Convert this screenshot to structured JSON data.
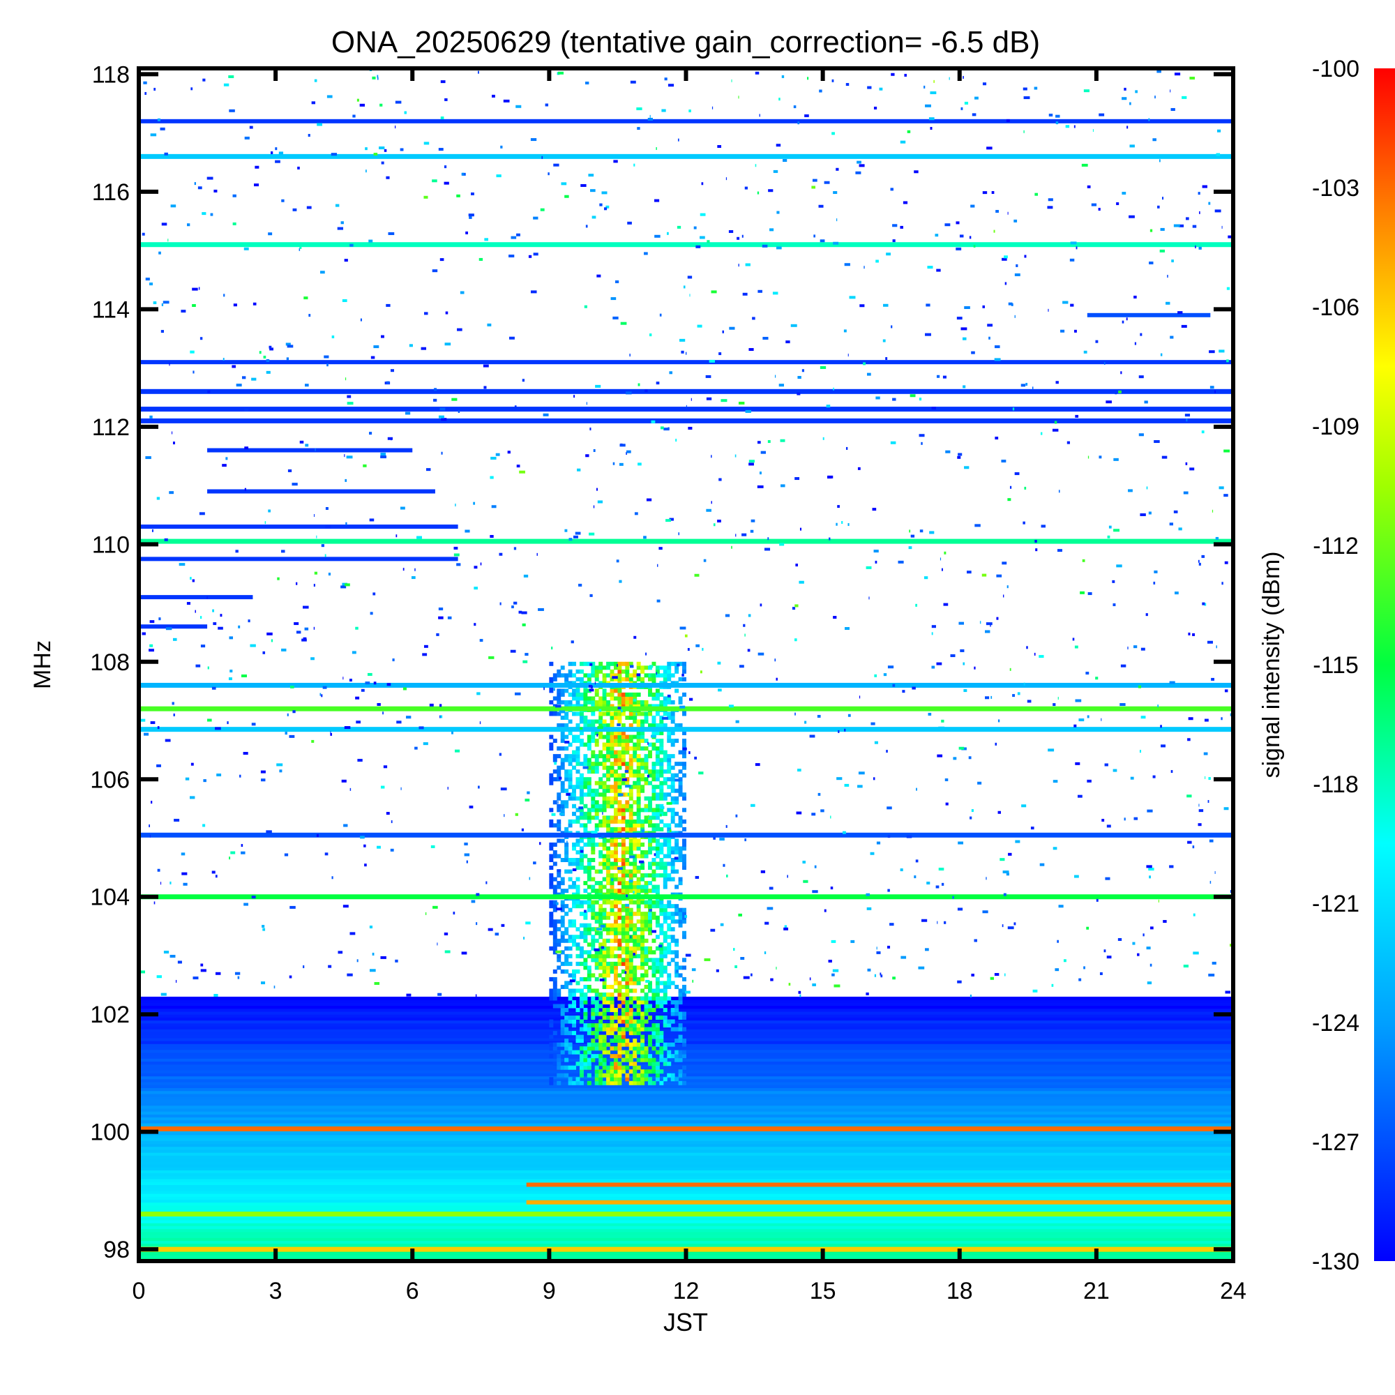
{
  "chart_data": {
    "type": "heatmap",
    "title": "ONA_20250629 (tentative gain_correction= -6.5 dB)",
    "xlabel": "JST",
    "ylabel": "MHz",
    "xlim": [
      0,
      24
    ],
    "ylim": [
      97.8,
      118.1
    ],
    "x_ticks": [
      0,
      3,
      6,
      9,
      12,
      15,
      18,
      21,
      24
    ],
    "x_tick_labels": [
      "0",
      "3",
      "6",
      "9",
      "12",
      "15",
      "18",
      "21",
      "24"
    ],
    "y_ticks": [
      98,
      100,
      102,
      104,
      106,
      108,
      110,
      112,
      114,
      116,
      118
    ],
    "y_tick_labels": [
      "98",
      "100",
      "102",
      "104",
      "106",
      "108",
      "110",
      "112",
      "114",
      "116",
      "118"
    ],
    "colorbar": {
      "label": "signal intensity (dBm)",
      "range": [
        -130,
        -100
      ],
      "colormap": "rainbow (blue=low, red=high)",
      "ticks": [
        -100,
        -103,
        -106,
        -109,
        -112,
        -115,
        -118,
        -121,
        -124,
        -127,
        -130
      ],
      "tick_labels": [
        "-100",
        "-103",
        "-106",
        "-109",
        "-112",
        "-115",
        "-118",
        "-121",
        "-124",
        "-127",
        "-130"
      ]
    },
    "background_color": "#ffffff",
    "grid": false,
    "persistent_lines": [
      {
        "freq_mhz": 116.6,
        "dbm": -122
      },
      {
        "freq_mhz": 115.1,
        "dbm": -118
      },
      {
        "freq_mhz": 112.6,
        "dbm": -128
      },
      {
        "freq_mhz": 112.3,
        "dbm": -128
      },
      {
        "freq_mhz": 112.1,
        "dbm": -128
      },
      {
        "freq_mhz": 110.05,
        "dbm": -117
      },
      {
        "freq_mhz": 107.6,
        "dbm": -123
      },
      {
        "freq_mhz": 107.2,
        "dbm": -113
      },
      {
        "freq_mhz": 106.85,
        "dbm": -122
      },
      {
        "freq_mhz": 105.05,
        "dbm": -127
      },
      {
        "freq_mhz": 104.0,
        "dbm": -115
      },
      {
        "freq_mhz": 100.05,
        "dbm": -103
      },
      {
        "freq_mhz": 98.6,
        "dbm": -111
      },
      {
        "freq_mhz": 98.0,
        "dbm": -106
      }
    ],
    "partial_lines": [
      {
        "freq_mhz": 117.2,
        "x_range": [
          0,
          24
        ],
        "dbm": -128
      },
      {
        "freq_mhz": 113.1,
        "x_range": [
          0,
          24
        ],
        "dbm": -128
      },
      {
        "freq_mhz": 111.6,
        "x_range": [
          1.5,
          6
        ],
        "dbm": -128
      },
      {
        "freq_mhz": 110.9,
        "x_range": [
          1.5,
          6.5
        ],
        "dbm": -128
      },
      {
        "freq_mhz": 110.3,
        "x_range": [
          0,
          7
        ],
        "dbm": -128
      },
      {
        "freq_mhz": 109.75,
        "x_range": [
          0,
          7
        ],
        "dbm": -128
      },
      {
        "freq_mhz": 109.1,
        "x_range": [
          0,
          2.5
        ],
        "dbm": -128
      },
      {
        "freq_mhz": 108.6,
        "x_range": [
          0,
          1.5
        ],
        "dbm": -128
      },
      {
        "freq_mhz": 113.9,
        "x_range": [
          20.8,
          23.5
        ],
        "dbm": -127
      },
      {
        "freq_mhz": 99.1,
        "x_range": [
          8.5,
          24
        ],
        "dbm": -103
      },
      {
        "freq_mhz": 98.8,
        "x_range": [
          8.5,
          24
        ],
        "dbm": -105
      }
    ],
    "broadband_burst": {
      "x_range": [
        9,
        12
      ],
      "freq_range_mhz": [
        100.8,
        108.0
      ],
      "dbm_range": [
        -128,
        -101
      ]
    },
    "noise_floor_band": {
      "freq_range_mhz": [
        97.8,
        102.3
      ],
      "dbm_range": [
        -130,
        -117
      ]
    }
  }
}
